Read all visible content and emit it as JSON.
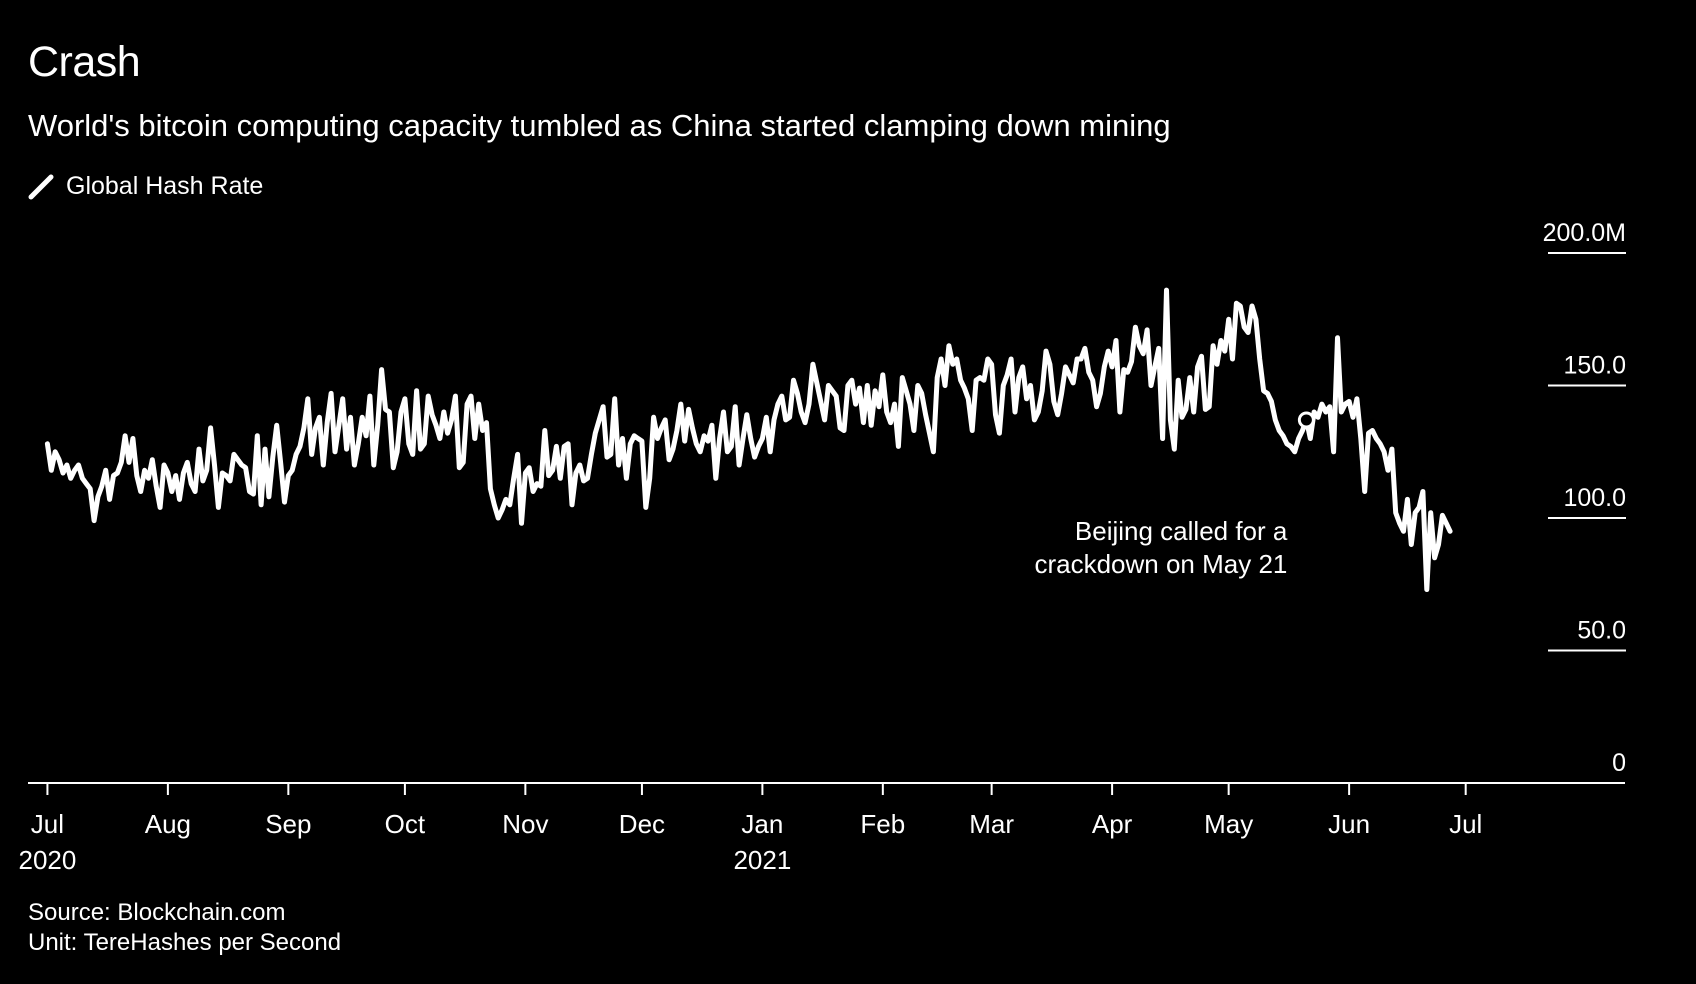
{
  "title": "Crash",
  "subtitle": "World's bitcoin computing capacity tumbled as China started clamping down mining",
  "legend": {
    "label": "Global Hash Rate",
    "icon": "line-swatch-icon"
  },
  "source": {
    "line1": "Source: Blockchain.com",
    "line2": "Unit: TereHashes per Second"
  },
  "colors": {
    "background": "#000000",
    "line": "#ffffff"
  },
  "chart_data": {
    "type": "line",
    "series": [
      {
        "name": "Global Hash Rate",
        "x_start": "2020-07-01",
        "x_step_days": 1,
        "values": [
          128,
          118,
          125,
          122,
          117,
          120,
          115,
          118,
          120,
          115,
          113,
          111,
          99,
          108,
          112,
          118,
          107,
          116,
          117,
          121,
          131,
          121,
          130,
          116,
          110,
          118,
          115,
          122,
          112,
          104,
          120,
          117,
          110,
          116,
          107,
          117,
          121,
          113,
          110,
          126,
          114,
          118,
          134,
          120,
          104,
          117,
          116,
          114,
          124,
          122,
          120,
          119,
          110,
          109,
          131,
          105,
          126,
          108,
          123,
          135,
          121,
          106,
          116,
          118,
          124,
          127,
          134,
          145,
          124,
          134,
          138,
          120,
          136,
          147,
          125,
          135,
          145,
          126,
          138,
          120,
          128,
          138,
          131,
          146,
          120,
          135,
          156,
          141,
          140,
          119,
          125,
          140,
          145,
          128,
          124,
          148,
          126,
          128,
          146,
          139,
          135,
          130,
          140,
          132,
          137,
          146,
          119,
          121,
          143,
          146,
          130,
          143,
          133,
          136,
          111,
          105,
          100,
          103,
          107,
          105,
          115,
          124,
          98,
          117,
          119,
          110,
          113,
          112,
          133,
          116,
          118,
          127,
          115,
          127,
          128,
          105,
          117,
          120,
          114,
          115,
          124,
          132,
          137,
          142,
          123,
          124,
          145,
          120,
          130,
          115,
          128,
          131,
          130,
          129,
          104,
          115,
          138,
          130,
          134,
          137,
          122,
          126,
          133,
          143,
          129,
          141,
          134,
          128,
          125,
          131,
          129,
          135,
          115,
          130,
          140,
          125,
          127,
          142,
          120,
          130,
          139,
          130,
          123,
          127,
          130,
          138,
          125,
          137,
          143,
          146,
          137,
          138,
          152,
          147,
          140,
          136,
          143,
          158,
          151,
          144,
          137,
          150,
          148,
          146,
          134,
          133,
          150,
          152,
          143,
          149,
          136,
          150,
          135,
          148,
          142,
          154,
          140,
          136,
          143,
          127,
          153,
          148,
          143,
          133,
          150,
          147,
          139,
          132,
          125,
          153,
          160,
          150,
          165,
          158,
          160,
          152,
          149,
          145,
          133,
          152,
          153,
          152,
          160,
          158,
          139,
          132,
          150,
          154,
          160,
          140,
          153,
          157,
          145,
          150,
          137,
          140,
          148,
          163,
          158,
          144,
          139,
          147,
          157,
          154,
          151,
          160,
          160,
          164,
          155,
          152,
          142,
          147,
          157,
          163,
          157,
          167,
          140,
          156,
          155,
          159,
          172,
          165,
          162,
          171,
          150,
          157,
          164,
          130,
          186,
          137,
          126,
          152,
          138,
          141,
          153,
          140,
          157,
          161,
          141,
          142,
          165,
          158,
          167,
          163,
          175,
          160,
          181,
          180,
          172,
          170,
          180,
          175,
          160,
          148,
          147,
          144,
          137,
          133,
          131,
          128,
          127,
          125,
          130,
          133,
          137,
          130,
          140,
          138,
          143,
          140,
          142,
          125,
          168,
          140,
          143,
          144,
          138,
          145,
          130,
          110,
          132,
          133,
          130,
          128,
          125,
          118,
          126,
          102,
          98,
          95,
          107,
          90,
          102,
          104,
          110,
          73,
          102,
          85,
          90,
          101,
          98,
          95
        ]
      }
    ],
    "x_ticks": [
      {
        "date": "2020-07-01",
        "label": "Jul",
        "sub": "2020"
      },
      {
        "date": "2020-08-01",
        "label": "Aug"
      },
      {
        "date": "2020-09-01",
        "label": "Sep"
      },
      {
        "date": "2020-10-01",
        "label": "Oct"
      },
      {
        "date": "2020-11-01",
        "label": "Nov"
      },
      {
        "date": "2020-12-01",
        "label": "Dec"
      },
      {
        "date": "2021-01-01",
        "label": "Jan",
        "sub": "2021"
      },
      {
        "date": "2021-02-01",
        "label": "Feb"
      },
      {
        "date": "2021-03-01",
        "label": "Mar"
      },
      {
        "date": "2021-04-01",
        "label": "Apr"
      },
      {
        "date": "2021-05-01",
        "label": "May"
      },
      {
        "date": "2021-06-01",
        "label": "Jun"
      },
      {
        "date": "2021-07-01",
        "label": "Jul"
      }
    ],
    "x_range": [
      "2020-06-26",
      "2021-08-11"
    ],
    "y_ticks": [
      {
        "value": 0,
        "label": "0"
      },
      {
        "value": 50,
        "label": "50.0"
      },
      {
        "value": 100,
        "label": "100.0"
      },
      {
        "value": 150,
        "label": "150.0"
      },
      {
        "value": 200,
        "label": "200.0M"
      }
    ],
    "ylim": [
      0,
      200
    ],
    "grid": false,
    "annotation": {
      "date": "2021-05-21",
      "value": 137,
      "lines": [
        "Beijing called for a",
        "crackdown on May 21"
      ]
    }
  }
}
